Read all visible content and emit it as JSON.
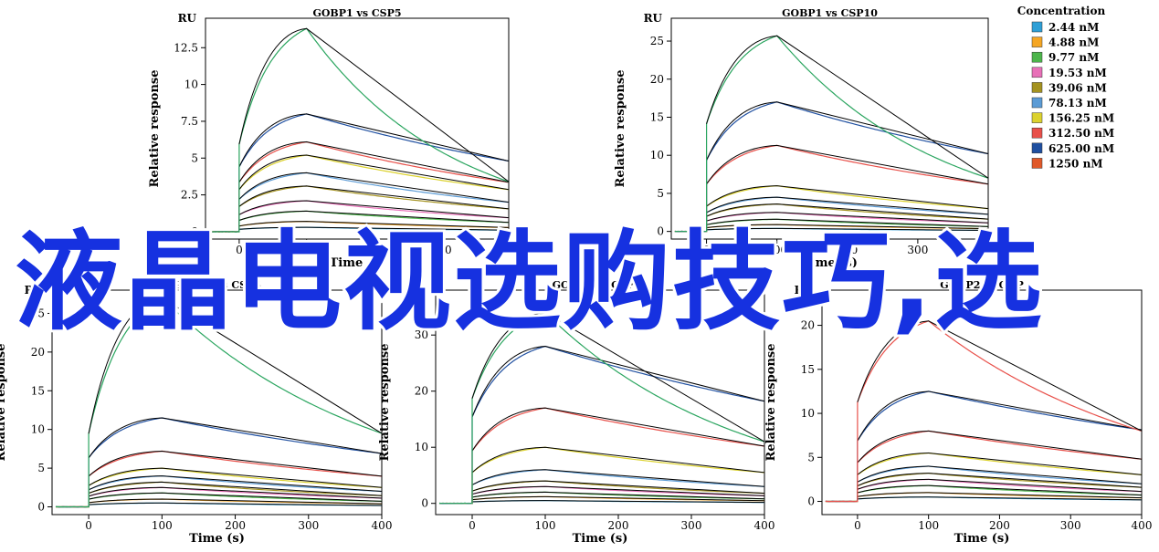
{
  "overlay_title": "液晶电视选购技巧,选",
  "legend": {
    "title": "Concentration",
    "items": [
      {
        "label": "2.44 nM",
        "color": "#2e9fd6"
      },
      {
        "label": "4.88 nM",
        "color": "#f5a623"
      },
      {
        "label": "9.77 nM",
        "color": "#4cb54b"
      },
      {
        "label": "19.53 nM",
        "color": "#e870b8"
      },
      {
        "label": "39.06 nM",
        "color": "#a4921f"
      },
      {
        "label": "78.13 nM",
        "color": "#5b9bd5"
      },
      {
        "label": "156.25 nM",
        "color": "#dcd22e"
      },
      {
        "label": "312.50 nM",
        "color": "#e8504a"
      },
      {
        "label": "625.00 nM",
        "color": "#1f4fa0"
      },
      {
        "label": "1250 nM",
        "color": "#e0592a"
      }
    ]
  },
  "chart_data": [
    {
      "type": "line",
      "title": "GOBP1 vs CSP5",
      "ru_label": "RU",
      "xlabel": "Time (s)",
      "ylabel": "Relative response",
      "xlim": [
        -50,
        400
      ],
      "ylim": [
        -0.5,
        14.5
      ],
      "xticks": [
        0,
        100,
        200,
        300,
        400
      ],
      "yticks": [
        0,
        2.5,
        5,
        7.5,
        10,
        12.5
      ],
      "ytick_labels": [
        "0",
        "2.5",
        "5",
        "7.5",
        "10",
        "12.5"
      ],
      "assoc_end": 100,
      "dissoc_end": 400,
      "rmax": [
        0.3,
        0.7,
        1.4,
        2.1,
        3.1,
        4.0,
        5.2,
        6.1,
        8.0,
        10.8
      ],
      "plateau_jump": [
        0.2,
        0.5,
        0.9,
        1.3,
        1.8,
        2.2,
        2.6,
        3.0,
        3.5,
        4.0
      ],
      "kd_frac": [
        0.35,
        0.4,
        0.45,
        0.45,
        0.5,
        0.5,
        0.55,
        0.55,
        0.6,
        0.65
      ],
      "top_curve": {
        "peak": 13.8,
        "end": 3.4,
        "color": "#2aa55f"
      }
    },
    {
      "type": "line",
      "title": "GOBP1 vs CSP10",
      "ru_label": "RU",
      "xlabel": "Time (s)",
      "ylabel": "Relative response",
      "xlim": [
        -50,
        400
      ],
      "ylim": [
        -1,
        28
      ],
      "xticks": [
        0,
        100,
        200,
        300,
        400
      ],
      "yticks": [
        0,
        5,
        10,
        15,
        20,
        25
      ],
      "ytick_labels": [
        "0",
        "5",
        "10",
        "15",
        "20",
        "25"
      ],
      "assoc_end": 100,
      "dissoc_end": 400,
      "rmax": [
        0.4,
        0.9,
        1.6,
        2.5,
        3.6,
        4.5,
        6.0,
        11.3,
        17.0,
        25.7
      ],
      "plateau_jump": [
        0.5,
        1.0,
        2.0,
        3.0,
        4.0,
        5.0,
        6.0,
        7.0,
        8.0,
        9.0
      ],
      "kd_frac": [
        0.35,
        0.4,
        0.4,
        0.45,
        0.45,
        0.5,
        0.5,
        0.55,
        0.6,
        0.7
      ],
      "top_curve": {
        "peak": 25.7,
        "end": 7.0,
        "color": "#2aa55f"
      }
    },
    {
      "type": "line",
      "title": "GOBP2 vs CSP5",
      "ru_label": "RU",
      "xlabel": "Time (s)",
      "ylabel": "Relative response",
      "xlim": [
        -50,
        400
      ],
      "ylim": [
        -1,
        28
      ],
      "xticks": [
        0,
        100,
        200,
        300,
        400
      ],
      "yticks": [
        0,
        5,
        10,
        15,
        20,
        25
      ],
      "ytick_labels": [
        "0",
        "5",
        "10",
        "15",
        "20",
        "25"
      ],
      "assoc_end": 100,
      "dissoc_end": 400,
      "rmax": [
        0.5,
        1.0,
        1.8,
        2.5,
        3.2,
        4.0,
        5.0,
        7.2,
        11.5,
        17.2
      ],
      "plateau_jump": [
        0.5,
        1.0,
        1.5,
        2.0,
        2.5,
        3.0,
        3.5,
        5.0,
        7.0,
        8.0
      ],
      "kd_frac": [
        0.35,
        0.4,
        0.4,
        0.45,
        0.45,
        0.5,
        0.5,
        0.55,
        0.6,
        0.7
      ],
      "top_curve": {
        "peak": 27.0,
        "end": 9.5,
        "color": "#2aa55f"
      }
    },
    {
      "type": "line",
      "title": "GOBP2 vs CSP10",
      "ru_label": "RU",
      "xlabel": "Time (s)",
      "ylabel": "Relative response",
      "xlim": [
        -50,
        400
      ],
      "ylim": [
        -2,
        38
      ],
      "xticks": [
        0,
        100,
        200,
        300,
        400
      ],
      "yticks": [
        0,
        10,
        20,
        30
      ],
      "ytick_labels": [
        "0",
        "10",
        "20",
        "30"
      ],
      "assoc_end": 100,
      "dissoc_end": 400,
      "rmax": [
        0.5,
        1.2,
        2.0,
        3.0,
        4.0,
        6.0,
        10.0,
        17.0,
        28.0,
        34.0
      ],
      "plateau_jump": [
        0.5,
        1.0,
        1.5,
        2.0,
        3.0,
        4.0,
        5.0,
        6.0,
        7.0,
        8.0
      ],
      "kd_frac": [
        0.35,
        0.4,
        0.4,
        0.45,
        0.45,
        0.5,
        0.55,
        0.6,
        0.65,
        0.7
      ],
      "top_curve": {
        "peak": 34.0,
        "end": 11.0,
        "color": "#2aa55f"
      }
    },
    {
      "type": "line",
      "title": "GOBP2 vs OBP",
      "ru_label": "RU",
      "xlabel": "Time (s)",
      "ylabel": "Relative response",
      "xlim": [
        -50,
        400
      ],
      "ylim": [
        -1.5,
        24
      ],
      "xticks": [
        0,
        100,
        200,
        300,
        400
      ],
      "yticks": [
        0,
        5,
        10,
        15,
        20
      ],
      "ytick_labels": [
        "0",
        "5",
        "10",
        "15",
        "20"
      ],
      "assoc_end": 100,
      "dissoc_end": 400,
      "rmax": [
        0.5,
        1.0,
        1.8,
        2.5,
        3.2,
        4.0,
        5.5,
        8.0,
        12.5,
        20.5
      ],
      "plateau_jump": [
        0.5,
        1.0,
        1.5,
        2.0,
        2.5,
        3.0,
        4.0,
        5.0,
        6.0,
        7.0
      ],
      "kd_frac": [
        0.35,
        0.4,
        0.4,
        0.45,
        0.5,
        0.5,
        0.55,
        0.6,
        0.65,
        0.75
      ],
      "top_curve": {
        "peak": 20.5,
        "end": 8.0,
        "color": "#e8504a"
      }
    }
  ]
}
